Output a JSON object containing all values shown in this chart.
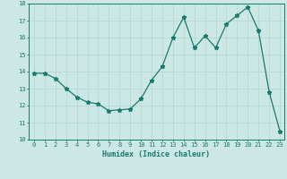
{
  "x": [
    0,
    1,
    2,
    3,
    4,
    5,
    6,
    7,
    8,
    9,
    10,
    11,
    12,
    13,
    14,
    15,
    16,
    17,
    18,
    19,
    20,
    21,
    22,
    23
  ],
  "y": [
    13.9,
    13.9,
    13.6,
    13.0,
    12.5,
    12.2,
    12.1,
    11.7,
    11.75,
    11.8,
    12.4,
    13.5,
    14.3,
    16.0,
    17.2,
    15.4,
    16.1,
    15.4,
    16.8,
    17.3,
    17.8,
    16.4,
    12.8,
    10.5
  ],
  "xlabel": "Humidex (Indice chaleur)",
  "xlim_left": -0.5,
  "xlim_right": 23.4,
  "ylim": [
    10,
    18
  ],
  "yticks": [
    10,
    11,
    12,
    13,
    14,
    15,
    16,
    17,
    18
  ],
  "xticks": [
    0,
    1,
    2,
    3,
    4,
    5,
    6,
    7,
    8,
    9,
    10,
    11,
    12,
    13,
    14,
    15,
    16,
    17,
    18,
    19,
    20,
    21,
    22,
    23
  ],
  "line_color": "#1a7a6e",
  "marker": "*",
  "bg_color": "#cce8e4",
  "grid_color": "#b8d8d4",
  "axis_color": "#1a7a6e",
  "tick_color": "#1a7a6e",
  "label_color": "#1a7a6e",
  "font_family": "monospace",
  "tick_fontsize": 5.0,
  "xlabel_fontsize": 6.0,
  "marker_size": 3.5,
  "line_width": 0.9
}
